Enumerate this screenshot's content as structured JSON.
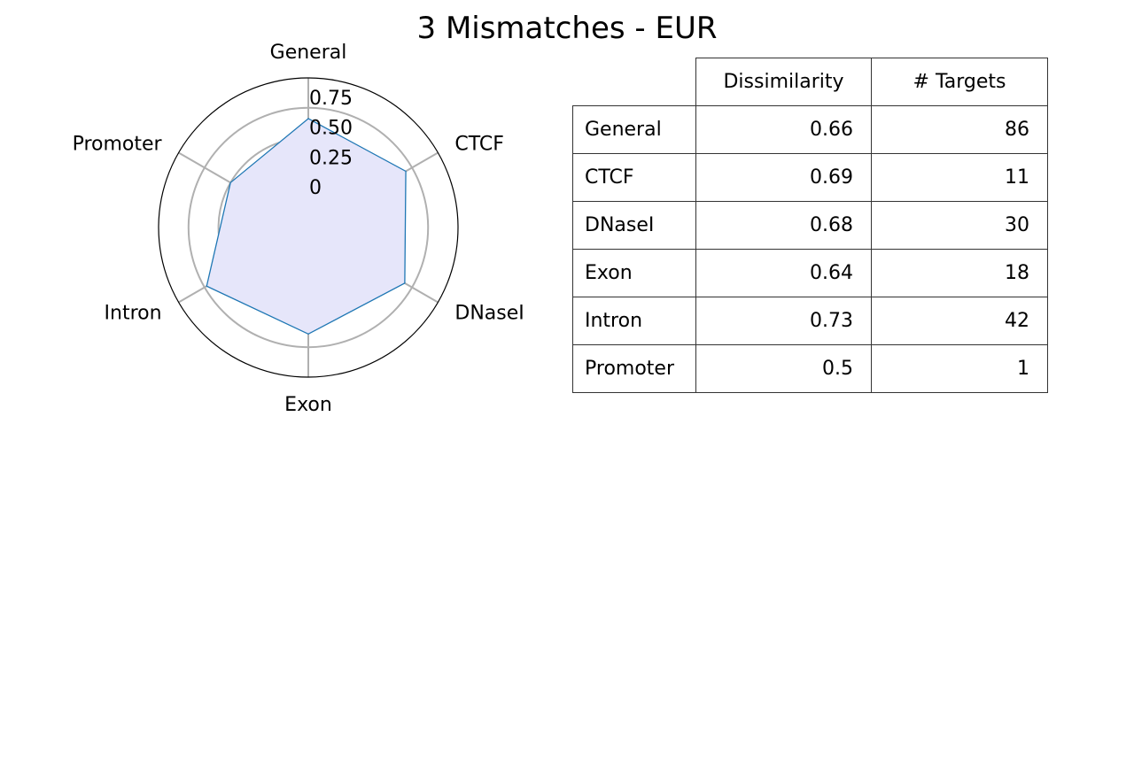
{
  "chart_data": [
    {
      "type": "radar",
      "title": "3 Mismatches - EUR",
      "categories": [
        "General",
        "CTCF",
        "DNaseI",
        "Exon",
        "Intron",
        "Promoter"
      ],
      "values": [
        0.66,
        0.69,
        0.68,
        0.64,
        0.73,
        0.5
      ],
      "radial_ticks": [
        "0",
        "0.25",
        "0.50",
        "0.75"
      ],
      "radial_tick_values": [
        0,
        0.25,
        0.5,
        0.75
      ],
      "rlim": [
        -0.25,
        1.0
      ],
      "grid": true,
      "line_color": "#1f77b4",
      "fill_color": "#e6e6fa"
    },
    {
      "type": "table",
      "columns": [
        "",
        "Dissimilarity",
        "# Targets"
      ],
      "rows": [
        {
          "label": "General",
          "dissimilarity": "0.66",
          "targets": "86"
        },
        {
          "label": "CTCF",
          "dissimilarity": "0.69",
          "targets": "11"
        },
        {
          "label": "DNaseI",
          "dissimilarity": "0.68",
          "targets": "30"
        },
        {
          "label": "Exon",
          "dissimilarity": "0.64",
          "targets": "18"
        },
        {
          "label": "Intron",
          "dissimilarity": "0.73",
          "targets": "42"
        },
        {
          "label": "Promoter",
          "dissimilarity": "0.5",
          "targets": "1"
        }
      ]
    }
  ]
}
